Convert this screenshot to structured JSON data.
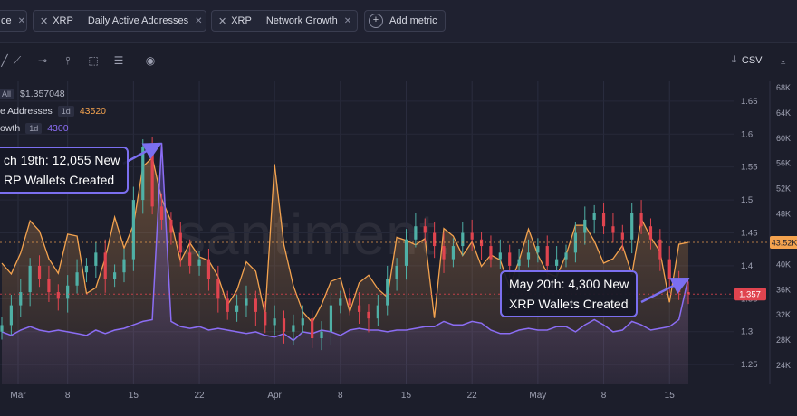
{
  "toolbar": {
    "pills": [
      {
        "label": "ce",
        "color": "",
        "has_x": false
      },
      {
        "label": "XRP",
        "metric": "Daily Active Addresses",
        "color": "#f4a34f",
        "has_x": true
      },
      {
        "label": "XRP",
        "metric": "Network Growth",
        "color": "#8b6df4",
        "has_x": true
      }
    ],
    "add_metric": "Add metric",
    "csv": "CSV"
  },
  "legend": {
    "price_badge": "All",
    "price_value": "$1.357048",
    "daa_label": "e Addresses",
    "daa_badge": "1d",
    "daa_value": "43520",
    "ng_label": "owth",
    "ng_badge": "1d",
    "ng_value": "4300"
  },
  "watermark": "santiment.",
  "callouts": {
    "march": [
      "ch 19th: 12,055 New",
      "RP Wallets Created"
    ],
    "may": [
      "May 20th: 4,300 New",
      "XRP Wallets Created"
    ]
  },
  "colors": {
    "daa": "#f4a34f",
    "ng": "#8b6df4",
    "up": "#4fb0a6",
    "down": "#e0444f",
    "accent": "#7b6ff0"
  },
  "chart_data": {
    "type": "line",
    "x_ticks": [
      "Mar",
      "8",
      "15",
      "22",
      "Apr",
      "8",
      "15",
      "22",
      "May",
      "8",
      "15"
    ],
    "y_left_ticks": [
      "1.65",
      "1.6",
      "1.55",
      "1.5",
      "1.45",
      "1.4",
      "1.35",
      "1.3",
      "1.25"
    ],
    "y_right_ticks": [
      "68K",
      "64K",
      "60K",
      "56K",
      "52K",
      "48K",
      "44K",
      "40K",
      "36K",
      "32K",
      "28K",
      "24K"
    ],
    "price_ylim": [
      1.22,
      1.68
    ],
    "daa_ylim": [
      21000,
      69000
    ],
    "ng_ylim": [
      0,
      13000
    ],
    "last_price_label": "1.357",
    "last_daa_label": "43.52K",
    "series": [
      {
        "name": "Daily Active Addresses",
        "values": [
          40200,
          38500,
          41800,
          46900,
          45300,
          40900,
          38600,
          44800,
          44500,
          35400,
          36300,
          41000,
          47500,
          42600,
          46300,
          55500,
          56900,
          50400,
          46800,
          40500,
          43400,
          41200,
          40600,
          38100,
          33600,
          35900,
          40400,
          38900,
          32000,
          55900,
          43100,
          36600,
          32500,
          30800,
          33600,
          37300,
          37900,
          32500,
          37100,
          38300,
          36100,
          34800,
          44300,
          43800,
          43100,
          44100,
          31500,
          45700,
          44500,
          41400,
          43600,
          39700,
          41500,
          40700,
          36400,
          40600,
          45600,
          41500,
          38600,
          38100,
          41500,
          46200,
          46200,
          43700,
          40200,
          40900,
          43000,
          38400,
          47200,
          44300,
          42000,
          34000,
          43200,
          43500
        ]
      },
      {
        "name": "Network Growth",
        "values": [
          1200,
          1000,
          1300,
          1500,
          1300,
          1200,
          1300,
          1200,
          1100,
          1000,
          1300,
          1100,
          1300,
          1400,
          1600,
          1800,
          1900,
          12055,
          1800,
          1500,
          1400,
          1500,
          1300,
          1400,
          1300,
          1200,
          1100,
          1200,
          1000,
          900,
          1100,
          700,
          1200,
          1100,
          1300,
          1200,
          1000,
          1300,
          1400,
          1300,
          1300,
          1200,
          1300,
          1300,
          1400,
          1500,
          1500,
          1800,
          1600,
          1600,
          1800,
          1700,
          1300,
          1100,
          1100,
          1300,
          1400,
          1300,
          1300,
          1500,
          1500,
          1200,
          1600,
          1900,
          1600,
          1200,
          1300,
          1800,
          1600,
          1300,
          1400,
          1500,
          1900,
          4300
        ]
      },
      {
        "name": "Price",
        "values": [
          1.31,
          1.34,
          1.36,
          1.4,
          1.38,
          1.36,
          1.35,
          1.37,
          1.39,
          1.4,
          1.42,
          1.38,
          1.39,
          1.41,
          1.5,
          1.58,
          1.49,
          1.47,
          1.45,
          1.42,
          1.4,
          1.41,
          1.38,
          1.35,
          1.33,
          1.34,
          1.35,
          1.33,
          1.31,
          1.32,
          1.3,
          1.31,
          1.32,
          1.29,
          1.3,
          1.34,
          1.35,
          1.34,
          1.33,
          1.32,
          1.34,
          1.38,
          1.4,
          1.44,
          1.46,
          1.45,
          1.43,
          1.41,
          1.43,
          1.45,
          1.44,
          1.43,
          1.41,
          1.42,
          1.4,
          1.41,
          1.42,
          1.43,
          1.4,
          1.41,
          1.42,
          1.45,
          1.47,
          1.48,
          1.46,
          1.45,
          1.44,
          1.48,
          1.46,
          1.44,
          1.41,
          1.38,
          1.36,
          1.357
        ]
      }
    ]
  }
}
